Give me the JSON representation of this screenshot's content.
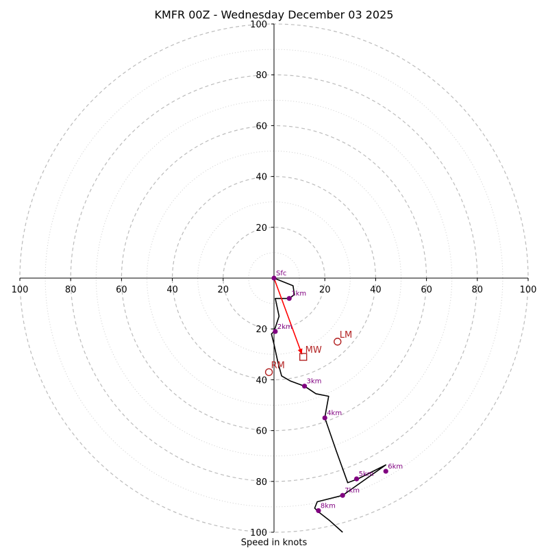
{
  "chart_data": {
    "type": "hodograph",
    "title": "KMFR 00Z - Wednesday December 03 2025",
    "xlabel": "Speed in knots",
    "range": [
      -100,
      100
    ],
    "x_ticks": [
      {
        "value": -100,
        "label": "100"
      },
      {
        "value": -80,
        "label": "80"
      },
      {
        "value": -60,
        "label": "60"
      },
      {
        "value": -40,
        "label": "40"
      },
      {
        "value": -20,
        "label": "20"
      },
      {
        "value": 20,
        "label": "20"
      },
      {
        "value": 40,
        "label": "40"
      },
      {
        "value": 60,
        "label": "60"
      },
      {
        "value": 80,
        "label": "80"
      },
      {
        "value": 100,
        "label": "100"
      }
    ],
    "y_ticks": [
      {
        "value": 100,
        "label": "100"
      },
      {
        "value": 80,
        "label": "80"
      },
      {
        "value": 60,
        "label": "60"
      },
      {
        "value": 40,
        "label": "40"
      },
      {
        "value": 20,
        "label": "20"
      },
      {
        "value": -20,
        "label": "20"
      },
      {
        "value": -40,
        "label": "40"
      },
      {
        "value": -60,
        "label": "60"
      },
      {
        "value": -80,
        "label": "80"
      },
      {
        "value": -100,
        "label": "100"
      }
    ],
    "rings_major": [
      20,
      40,
      60,
      80,
      100
    ],
    "rings_minor": [
      10,
      30,
      50,
      70,
      90
    ],
    "trace": [
      [
        0,
        0
      ],
      [
        7.5,
        -3
      ],
      [
        8,
        -6.5
      ],
      [
        6,
        -8
      ],
      [
        2,
        -8
      ],
      [
        0.5,
        -8
      ],
      [
        2,
        -15
      ],
      [
        1,
        -18
      ],
      [
        0,
        -21
      ],
      [
        -1,
        -22
      ],
      [
        0,
        -26
      ],
      [
        1.5,
        -33
      ],
      [
        3,
        -38.5
      ],
      [
        6.5,
        -40.5
      ],
      [
        12,
        -42.5
      ],
      [
        16.5,
        -45.5
      ],
      [
        21.5,
        -46.5
      ],
      [
        20.5,
        -52
      ],
      [
        20,
        -55
      ],
      [
        24.5,
        -68
      ],
      [
        29,
        -80.5
      ],
      [
        33,
        -79
      ],
      [
        39,
        -76
      ],
      [
        44,
        -73.5
      ],
      [
        27,
        -85.5
      ],
      [
        19,
        -87.5
      ],
      [
        17,
        -88
      ],
      [
        16,
        -90.5
      ],
      [
        17.5,
        -92
      ],
      [
        22,
        -95.5
      ],
      [
        27,
        -100
      ]
    ],
    "height_markers": [
      {
        "label": "Sfc",
        "u": 0,
        "v": 0
      },
      {
        "label": "1km",
        "u": 6,
        "v": -8
      },
      {
        "label": "2km",
        "u": 0.5,
        "v": -21
      },
      {
        "label": "3km",
        "u": 12,
        "v": -42.5
      },
      {
        "label": "4km",
        "u": 20,
        "v": -55
      },
      {
        "label": "5km",
        "u": 32.5,
        "v": -79
      },
      {
        "label": "6km",
        "u": 44,
        "v": -76
      },
      {
        "label": "7km",
        "u": 27,
        "v": -85.5
      },
      {
        "label": "8km",
        "u": 17.5,
        "v": -91.5
      }
    ],
    "storm_motion": {
      "arrow_to": {
        "u": 11,
        "v": -30
      },
      "points": [
        {
          "label": "LM",
          "u": 25,
          "v": -25,
          "symbol": "circle"
        },
        {
          "label": "MW",
          "u": 11.5,
          "v": -31,
          "symbol": "square"
        },
        {
          "label": "RM",
          "u": -2,
          "v": -37,
          "symbol": "circle"
        }
      ]
    },
    "colors": {
      "trace": "#000000",
      "markers": "#800080",
      "storm": "#b22222",
      "arrow": "#ff0000",
      "ring_major": "#bbbbbb",
      "ring_minor": "#cccccc"
    }
  }
}
